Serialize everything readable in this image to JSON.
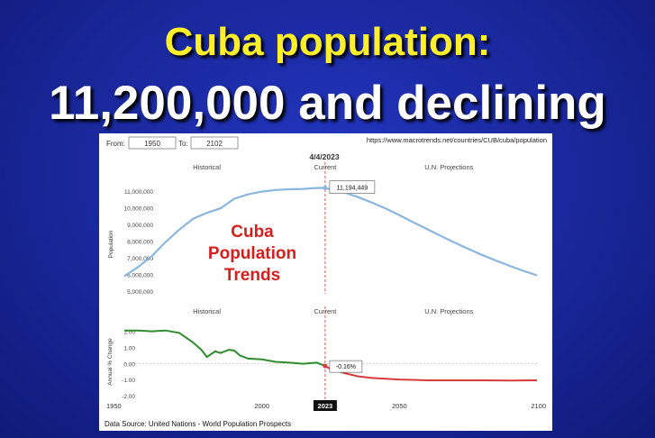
{
  "slide": {
    "title_line1": "Cuba population:",
    "title_line2": "11,200,000 and declining"
  },
  "controls": {
    "from_label": "From:",
    "from_value": "1950",
    "to_label": "To:",
    "to_value": "2102",
    "url": "https://www.macrotrends.net/countries/CUB/cuba/population"
  },
  "overlay": {
    "line1": "Cuba",
    "line2": "Population",
    "line3": "Trends",
    "color": "#d41f1f"
  },
  "footer": {
    "source": "Data Source: United Nations - World Population Prospects"
  },
  "chart_data": [
    {
      "type": "line",
      "date_label": "4/4/2023",
      "section_labels": [
        "Historical",
        "Current",
        "U.N. Projections"
      ],
      "ylabel": "Population",
      "yticks": [
        "11,000,000",
        "10,000,000",
        "9,000,000",
        "8,000,000",
        "7,000,000",
        "6,000,000",
        "5,000,000"
      ],
      "ylim": [
        5000000,
        11500000
      ],
      "xlim": [
        1950,
        2100
      ],
      "current_year": 2023,
      "current_value_label": "11,194,449",
      "line_color": "#8bb6de",
      "x": [
        1950,
        1955,
        1960,
        1965,
        1970,
        1975,
        1980,
        1985,
        1990,
        1995,
        2000,
        2005,
        2010,
        2015,
        2020,
        2023,
        2025,
        2030,
        2035,
        2040,
        2045,
        2050,
        2055,
        2060,
        2065,
        2070,
        2075,
        2080,
        2085,
        2090,
        2095,
        2100
      ],
      "y": [
        5900000,
        6450000,
        7100000,
        7950000,
        8700000,
        9350000,
        9700000,
        9980000,
        10550000,
        10820000,
        10980000,
        11080000,
        11120000,
        11140000,
        11200000,
        11194449,
        11120000,
        10920000,
        10650000,
        10320000,
        9960000,
        9560000,
        9140000,
        8730000,
        8320000,
        7920000,
        7540000,
        7180000,
        6840000,
        6520000,
        6220000,
        5950000
      ]
    },
    {
      "type": "line",
      "section_labels": [
        "Historical",
        "Current",
        "U.N. Projections"
      ],
      "ylabel": "Annual % Change",
      "yticks": [
        "2.00",
        "1.00",
        "0.00",
        "-1.00",
        "-2.00"
      ],
      "ylim": [
        -2,
        2.2
      ],
      "xlim": [
        1950,
        2100
      ],
      "xticks": [
        "1950",
        "2000",
        "2023",
        "2050",
        "2100"
      ],
      "current_value_label": "-0.16%",
      "historical_color": "#2e8b2e",
      "projection_color": "#d93a3a",
      "x": [
        1950,
        1955,
        1960,
        1965,
        1970,
        1975,
        1978,
        1980,
        1983,
        1985,
        1988,
        1990,
        1992,
        1995,
        2000,
        2005,
        2010,
        2015,
        2020,
        2023,
        2025,
        2030,
        2035,
        2040,
        2045,
        2050,
        2055,
        2060,
        2070,
        2080,
        2090,
        2100
      ],
      "y": [
        2.05,
        2.05,
        2.0,
        2.05,
        1.9,
        1.3,
        0.85,
        0.4,
        0.75,
        0.65,
        0.85,
        0.8,
        0.5,
        0.3,
        0.25,
        0.1,
        0.05,
        -0.02,
        0.05,
        -0.16,
        -0.35,
        -0.6,
        -0.8,
        -0.9,
        -0.95,
        -1.0,
        -1.02,
        -1.05,
        -1.05,
        -1.05,
        -1.06,
        -1.05
      ]
    }
  ]
}
